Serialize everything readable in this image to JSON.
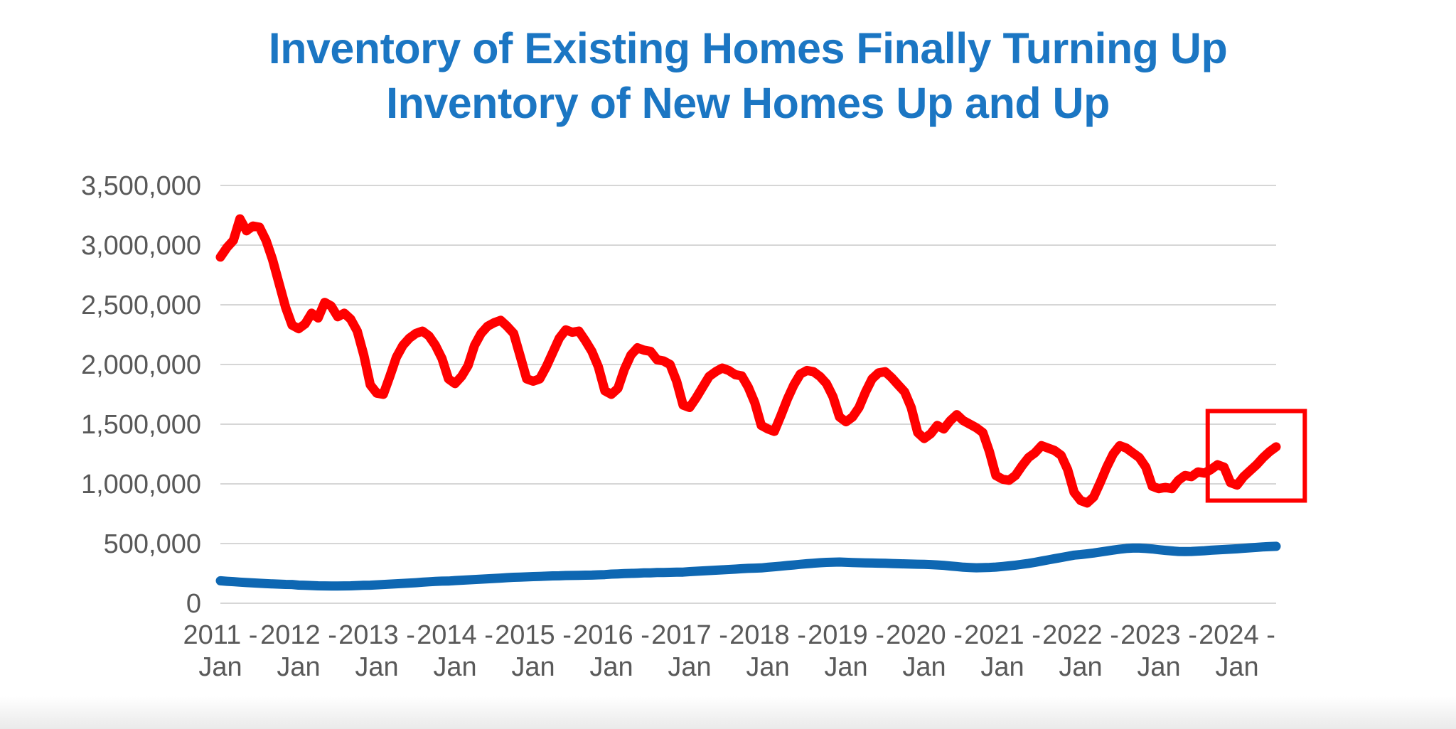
{
  "title": {
    "line1": "Inventory of Existing Homes Finally Turning Up",
    "line2": "Inventory of New Homes Up and Up",
    "color": "#1B76C3"
  },
  "chart_data": {
    "type": "line",
    "frequency": "monthly",
    "x_start": "2011-01",
    "x_end": "2024-07",
    "ylim": [
      0,
      3500000
    ],
    "grid": "horizontal",
    "legend": "none",
    "colors": {
      "axis_text": "#595959",
      "gridline": "#D6D6D6",
      "background": "#FFFFFF"
    },
    "y_tick_labels": [
      "3,500,000",
      "3,000,000",
      "2,500,000",
      "2,000,000",
      "1,500,000",
      "1,000,000",
      "500,000",
      "0"
    ],
    "x_tick_labels": [
      {
        "year": "2011 -",
        "month": "Jan"
      },
      {
        "year": "2012 -",
        "month": "Jan"
      },
      {
        "year": "2013 -",
        "month": "Jan"
      },
      {
        "year": "2014 -",
        "month": "Jan"
      },
      {
        "year": "2015 -",
        "month": "Jan"
      },
      {
        "year": "2016 -",
        "month": "Jan"
      },
      {
        "year": "2017 -",
        "month": "Jan"
      },
      {
        "year": "2018 -",
        "month": "Jan"
      },
      {
        "year": "2019 -",
        "month": "Jan"
      },
      {
        "year": "2020 -",
        "month": "Jan"
      },
      {
        "year": "2021 -",
        "month": "Jan"
      },
      {
        "year": "2022 -",
        "month": "Jan"
      },
      {
        "year": "2023 -",
        "month": "Jan"
      },
      {
        "year": "2024 -",
        "month": "Jan"
      }
    ],
    "series": [
      {
        "name": "Inventory of new homes",
        "color": "#0E67B2",
        "unit": "thousand homes",
        "values": [
          188,
          184,
          181,
          177,
          173,
          170,
          167,
          164,
          162,
          160,
          158,
          157,
          152,
          150,
          148,
          146,
          145,
          144,
          144,
          145,
          146,
          148,
          150,
          151,
          154,
          157,
          160,
          163,
          166,
          169,
          172,
          176,
          180,
          183,
          185,
          186,
          190,
          193,
          196,
          199,
          202,
          205,
          208,
          211,
          214,
          217,
          219,
          221,
          223,
          225,
          227,
          229,
          230,
          232,
          233,
          234,
          235,
          236,
          238,
          240,
          244,
          246,
          248,
          250,
          252,
          254,
          255,
          257,
          258,
          259,
          260,
          261,
          265,
          268,
          271,
          274,
          277,
          280,
          283,
          286,
          289,
          292,
          294,
          296,
          301,
          306,
          311,
          316,
          321,
          326,
          331,
          335,
          339,
          342,
          344,
          345,
          343,
          341,
          339,
          338,
          337,
          336,
          335,
          333,
          331,
          330,
          328,
          327,
          326,
          324,
          321,
          317,
          312,
          307,
          302,
          299,
          297,
          298,
          300,
          303,
          308,
          313,
          319,
          326,
          334,
          343,
          353,
          363,
          373,
          383,
          393,
          403,
          408,
          414,
          421,
          429,
          437,
          445,
          453,
          459,
          462,
          462,
          459,
          455,
          448,
          443,
          438,
          434,
          433,
          434,
          437,
          440,
          444,
          447,
          450,
          453,
          456,
          460,
          464,
          468,
          472,
          475,
          477
        ]
      },
      {
        "name": "Inventory of existing homes",
        "color": "#FF0000",
        "unit": "thousand homes",
        "values": [
          2900,
          2980,
          3040,
          3220,
          3120,
          3160,
          3150,
          3040,
          2880,
          2680,
          2480,
          2330,
          2300,
          2340,
          2430,
          2390,
          2520,
          2490,
          2400,
          2430,
          2380,
          2280,
          2080,
          1830,
          1760,
          1750,
          1900,
          2060,
          2160,
          2220,
          2260,
          2280,
          2240,
          2160,
          2050,
          1880,
          1840,
          1900,
          1990,
          2160,
          2260,
          2320,
          2350,
          2370,
          2320,
          2260,
          2070,
          1880,
          1860,
          1880,
          1980,
          2100,
          2220,
          2290,
          2270,
          2280,
          2200,
          2110,
          1980,
          1780,
          1750,
          1800,
          1960,
          2080,
          2140,
          2120,
          2110,
          2040,
          2030,
          2000,
          1860,
          1660,
          1640,
          1720,
          1810,
          1900,
          1940,
          1970,
          1950,
          1915,
          1905,
          1810,
          1680,
          1490,
          1460,
          1440,
          1570,
          1710,
          1830,
          1920,
          1950,
          1940,
          1900,
          1840,
          1730,
          1560,
          1520,
          1560,
          1640,
          1770,
          1880,
          1930,
          1940,
          1890,
          1830,
          1770,
          1640,
          1430,
          1380,
          1420,
          1490,
          1460,
          1530,
          1580,
          1530,
          1500,
          1470,
          1430,
          1270,
          1070,
          1040,
          1030,
          1070,
          1150,
          1220,
          1260,
          1320,
          1300,
          1280,
          1240,
          1120,
          930,
          860,
          840,
          890,
          1010,
          1140,
          1250,
          1320,
          1300,
          1260,
          1220,
          1140,
          980,
          960,
          970,
          960,
          1030,
          1070,
          1060,
          1100,
          1090,
          1120,
          1160,
          1140,
          1010,
          990,
          1060,
          1110,
          1160,
          1220,
          1270,
          1310
        ]
      }
    ],
    "annotation": {
      "type": "box",
      "color": "#FE0000",
      "x0_month_index": 151.5,
      "x1_month_index": 166.4,
      "y0_value": 860000,
      "y1_value": 1610000
    }
  }
}
